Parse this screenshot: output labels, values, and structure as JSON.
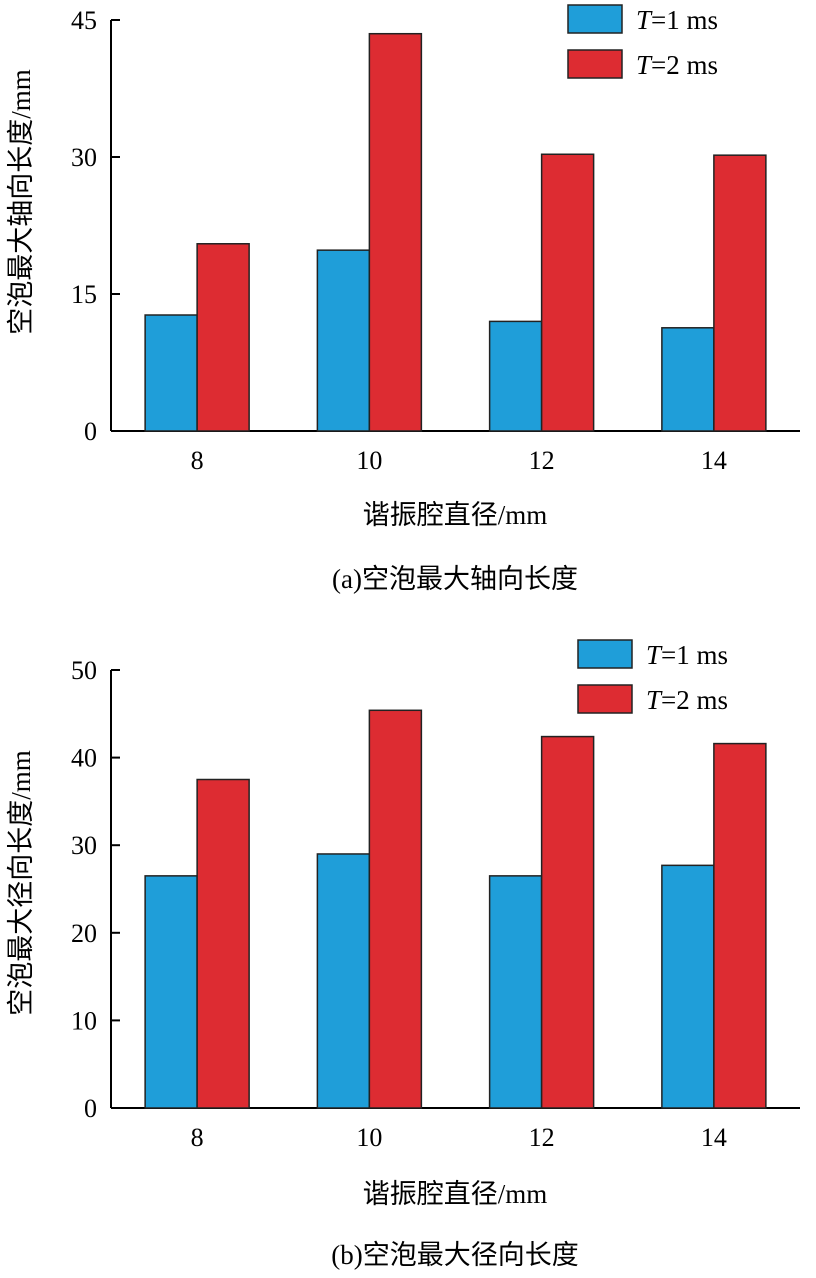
{
  "chart_data": [
    {
      "type": "bar",
      "caption": "(a)空泡最大轴向长度",
      "xlabel": "谐振腔直径/mm",
      "ylabel": "空泡最大轴向长度/mm",
      "categories": [
        "8",
        "10",
        "12",
        "14"
      ],
      "ylim": [
        0,
        45
      ],
      "yticks": [
        0,
        15,
        30,
        45
      ],
      "legend_position": "top-right",
      "series": [
        {
          "name_prefix": "T",
          "name_suffix": "=1 ms",
          "color": "#1f9ed9",
          "values": [
            12.7,
            19.8,
            12.0,
            11.3
          ]
        },
        {
          "name_prefix": "T",
          "name_suffix": "=2 ms",
          "color": "#dd2c32",
          "values": [
            20.5,
            43.5,
            30.3,
            30.2
          ]
        }
      ]
    },
    {
      "type": "bar",
      "caption": "(b)空泡最大径向长度",
      "xlabel": "谐振腔直径/mm",
      "ylabel": "空泡最大径向长度/mm",
      "categories": [
        "8",
        "10",
        "12",
        "14"
      ],
      "ylim": [
        0,
        50
      ],
      "yticks": [
        0,
        10,
        20,
        30,
        40,
        50
      ],
      "legend_position": "top-right",
      "series": [
        {
          "name_prefix": "T",
          "name_suffix": "=1 ms",
          "color": "#1f9ed9",
          "values": [
            26.5,
            29.0,
            26.5,
            27.7
          ]
        },
        {
          "name_prefix": "T",
          "name_suffix": "=2 ms",
          "color": "#dd2c32",
          "values": [
            37.5,
            45.4,
            42.4,
            41.6
          ]
        }
      ]
    }
  ]
}
